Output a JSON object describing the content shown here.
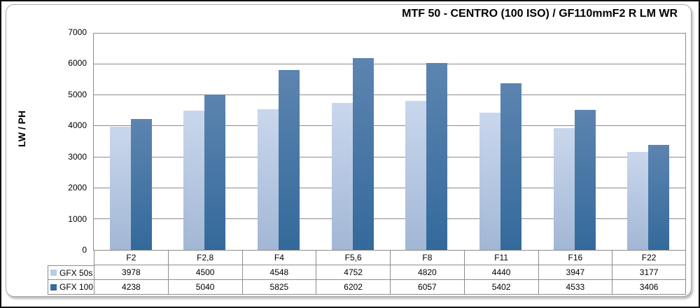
{
  "chart_data": {
    "type": "bar",
    "title": "MTF 50 - CENTRO (100 ISO) / GF110mmF2 R LM WR",
    "ylabel": "LW / PH",
    "ylim": [
      0,
      7000
    ],
    "yticks": [
      0,
      1000,
      2000,
      3000,
      4000,
      5000,
      6000,
      7000
    ],
    "grid": true,
    "gridline_color": "#8c8c8c",
    "legend_position": "table-left",
    "categories": [
      "F2",
      "F2,8",
      "F4",
      "F5,6",
      "F8",
      "F11",
      "F16",
      "F22"
    ],
    "series": [
      {
        "name": "GFX 50s",
        "values": [
          3978,
          4500,
          4548,
          4752,
          4820,
          4440,
          3947,
          3177
        ],
        "swatch": "#b8cce4",
        "bar_top": "#c9d7ec",
        "bar_bottom": "#a2b7d5"
      },
      {
        "name": "GFX 100",
        "values": [
          4238,
          5040,
          5825,
          6202,
          6057,
          5402,
          4533,
          3406
        ],
        "swatch": "#376a9d",
        "bar_top": "#5d84b0",
        "bar_bottom": "#336a9b"
      }
    ]
  }
}
